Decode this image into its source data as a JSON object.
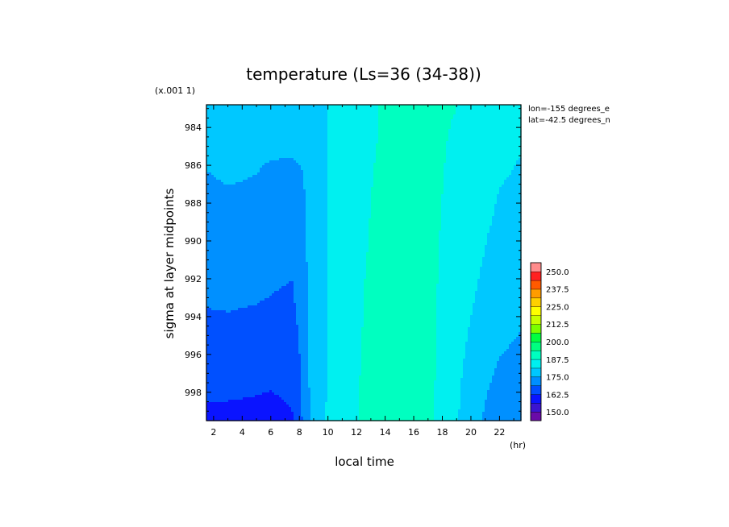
{
  "chart_data": {
    "type": "heatmap",
    "title": "temperature (Ls=36 (34-38))",
    "xlabel": "local time",
    "x_units": "(hr)",
    "ylabel": "sigma at layer midpoints",
    "y_scale_note": "(x.001 1)",
    "x_ticks": [
      "2",
      "4",
      "6",
      "8",
      "10",
      "12",
      "14",
      "16",
      "18",
      "20",
      "22"
    ],
    "y_ticks": [
      "984",
      "986",
      "988",
      "990",
      "992",
      "994",
      "996",
      "998"
    ],
    "xlim": [
      1.5,
      23.5
    ],
    "ylim": [
      999.5,
      982.8
    ],
    "annotations": [
      "lon=-155 degrees_e",
      "lat=-42.5 degrees_n"
    ],
    "colorbar": {
      "labels": [
        "250.0",
        "237.5",
        "225.0",
        "212.5",
        "200.0",
        "187.5",
        "175.0",
        "162.5",
        "150.0"
      ],
      "levels": [
        143.75,
        150,
        156.25,
        162.5,
        168.75,
        175,
        181.25,
        187.5,
        193.75,
        200,
        206.25,
        212.5,
        218.75,
        225,
        231.25,
        237.5,
        243.75,
        250,
        256.25
      ],
      "colors": [
        "#6a0aa8",
        "#3b14d0",
        "#0a14ff",
        "#0050ff",
        "#0090ff",
        "#00c8ff",
        "#00f0f0",
        "#00ffc0",
        "#00ff80",
        "#00ff40",
        "#7aff00",
        "#c8ff00",
        "#ffff00",
        "#ffd000",
        "#ff9c00",
        "#ff5a00",
        "#ff2020",
        "#ff8c8c"
      ]
    },
    "x_nodes": [
      1.5,
      3,
      5,
      6,
      7.5,
      8,
      8.5,
      9,
      10,
      11,
      12.5,
      14.5,
      15.5,
      16.5,
      18,
      19,
      20,
      21,
      22,
      23.5
    ],
    "y_nodes": [
      983,
      984.5,
      986.5,
      988.5,
      990.5,
      992,
      993.5,
      995,
      996,
      997,
      998,
      999.5
    ],
    "temperature_grid": [
      [
        177.5,
        177.3,
        177.2,
        177.2,
        177.3,
        177.4,
        177.6,
        177.9,
        181.5,
        182.5,
        186.5,
        188.5,
        188.8,
        188.5,
        188,
        187.5,
        184.5,
        182.5,
        182.0,
        182
      ],
      [
        177,
        176.5,
        176.3,
        176.3,
        176.5,
        176.7,
        176.8,
        177,
        181.3,
        182.5,
        186.5,
        188.5,
        188.8,
        188.5,
        187.8,
        187,
        184.2,
        182.4,
        181.8,
        181.5
      ],
      [
        174.8,
        175.5,
        175,
        174.2,
        173.8,
        174.3,
        175.5,
        176.8,
        181.2,
        182.6,
        186.8,
        188.9,
        189,
        188.7,
        187.6,
        186.5,
        184,
        182.3,
        181.5,
        181
      ],
      [
        173.5,
        173.8,
        173.5,
        172.8,
        172.5,
        173.4,
        175.3,
        176.7,
        181.2,
        182.8,
        187,
        189.2,
        189.3,
        188.9,
        187.4,
        186,
        183.8,
        182,
        180.8,
        180
      ],
      [
        171.8,
        172.0,
        171.6,
        170.8,
        170.2,
        172.2,
        175,
        176.6,
        181.3,
        183,
        187.2,
        189.5,
        189.6,
        189.1,
        187.2,
        185.5,
        183.2,
        181.2,
        179.7,
        179
      ],
      [
        170.3,
        170.5,
        170.1,
        169.5,
        168.8,
        171.3,
        174.8,
        176.6,
        181.4,
        183.2,
        187.4,
        189.7,
        189.8,
        189.3,
        187,
        185,
        182.5,
        180.2,
        178.6,
        177.5
      ],
      [
        168.8,
        169,
        168.6,
        168.2,
        167.6,
        170.3,
        174.6,
        176.5,
        181.5,
        183.4,
        187.6,
        190,
        190,
        189.5,
        186.8,
        184.5,
        181.6,
        179.2,
        177.4,
        176
      ],
      [
        167.2,
        167.5,
        167,
        166.6,
        166.3,
        169.3,
        174.5,
        176.5,
        181.6,
        183.6,
        187.8,
        190.3,
        190.3,
        189.7,
        186.6,
        184,
        180.5,
        178,
        176.3,
        174.8
      ],
      [
        166,
        166.2,
        165.8,
        165.4,
        165.5,
        168.5,
        174.3,
        176.4,
        181.7,
        183.8,
        188,
        190.5,
        190.5,
        189.9,
        186.4,
        183.5,
        179.5,
        177,
        175.2,
        173.7
      ],
      [
        164.5,
        164.8,
        164.2,
        163.8,
        164.2,
        167.6,
        174.2,
        176.4,
        181.8,
        184,
        188.2,
        190.7,
        190.8,
        190.1,
        186.2,
        183,
        178.5,
        176.1,
        174.2,
        172.6
      ],
      [
        163.2,
        163.2,
        162.8,
        162.4,
        163.4,
        166.8,
        174.1,
        176.4,
        181.9,
        184.2,
        188.4,
        191,
        191,
        190.3,
        186,
        182.5,
        177.6,
        175.3,
        173.3,
        171.8
      ],
      [
        161.2,
        160.9,
        160.5,
        160.2,
        162,
        165.5,
        174,
        176.4,
        182,
        184.4,
        188.6,
        191.2,
        191.2,
        190.5,
        185.8,
        182,
        176.8,
        174.5,
        172.5,
        171
      ]
    ]
  }
}
